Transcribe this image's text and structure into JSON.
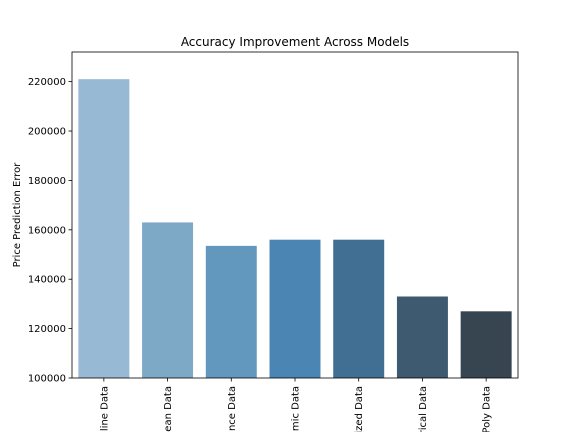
{
  "chart_data": {
    "type": "bar",
    "title": "Accuracy Improvement Across Models",
    "xlabel": "",
    "ylabel": "Price Prediction Error",
    "categories": [
      "line Data",
      "ean Data",
      "nce Data",
      "mic Data",
      "ized Data",
      "rical Data",
      "Poly Data"
    ],
    "values": [
      221000,
      163000,
      153500,
      156000,
      156000,
      133000,
      127000
    ],
    "ylim": [
      100000,
      232000
    ],
    "yticks": [
      100000,
      120000,
      140000,
      160000,
      180000,
      200000,
      220000
    ],
    "colors": [
      "#98b9d4",
      "#7da9c6",
      "#6298bd",
      "#4a85b3",
      "#416f93",
      "#3d5a70",
      "#374550"
    ],
    "grid": false,
    "legend": "none"
  }
}
